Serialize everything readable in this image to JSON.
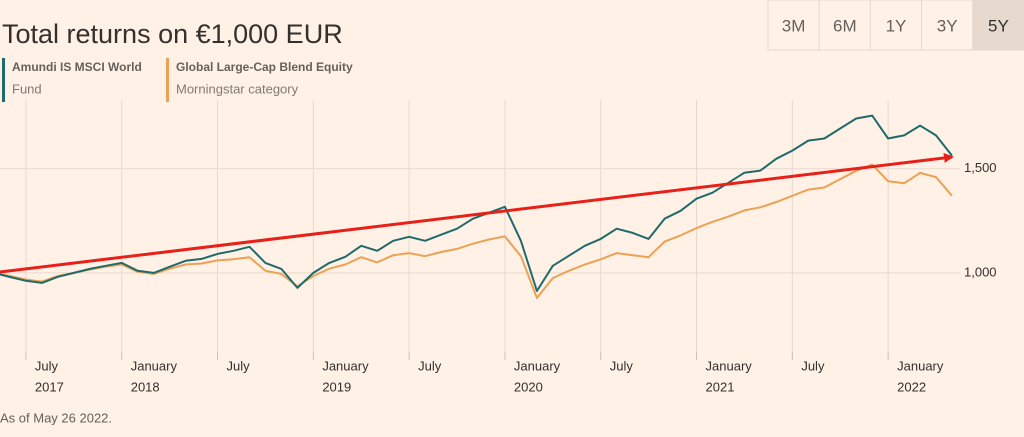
{
  "chart_data": {
    "type": "line",
    "title": "Total returns on €1,000 EUR",
    "range_buttons": [
      "3M",
      "6M",
      "1Y",
      "3Y",
      "5Y"
    ],
    "selected_range": "5Y",
    "footnote": "As of May 26 2022.",
    "x": [
      "2017-05",
      "2017-06",
      "2017-07",
      "2017-08",
      "2017-09",
      "2017-10",
      "2017-11",
      "2017-12",
      "2018-01",
      "2018-02",
      "2018-03",
      "2018-04",
      "2018-05",
      "2018-06",
      "2018-07",
      "2018-08",
      "2018-09",
      "2018-10",
      "2018-11",
      "2018-12",
      "2019-01",
      "2019-02",
      "2019-03",
      "2019-04",
      "2019-05",
      "2019-06",
      "2019-07",
      "2019-08",
      "2019-09",
      "2019-10",
      "2019-11",
      "2019-12",
      "2020-01",
      "2020-02",
      "2020-03",
      "2020-04",
      "2020-05",
      "2020-06",
      "2020-07",
      "2020-08",
      "2020-09",
      "2020-10",
      "2020-11",
      "2020-12",
      "2021-01",
      "2021-02",
      "2021-03",
      "2021-04",
      "2021-05",
      "2021-06",
      "2021-07",
      "2021-08",
      "2021-09",
      "2021-10",
      "2021-11",
      "2021-12",
      "2022-01",
      "2022-02",
      "2022-03",
      "2022-04",
      "2022-05"
    ],
    "xlim": [
      "2017-05",
      "2022-05"
    ],
    "xticks": [
      {
        "value": "2017-07",
        "label": "July",
        "year": "2017"
      },
      {
        "value": "2018-01",
        "label": "January",
        "year": "2018"
      },
      {
        "value": "2018-07",
        "label": "July"
      },
      {
        "value": "2019-01",
        "label": "January",
        "year": "2019"
      },
      {
        "value": "2019-07",
        "label": "July"
      },
      {
        "value": "2020-01",
        "label": "January",
        "year": "2020"
      },
      {
        "value": "2020-07",
        "label": "July"
      },
      {
        "value": "2021-01",
        "label": "January",
        "year": "2021"
      },
      {
        "value": "2021-07",
        "label": "July"
      },
      {
        "value": "2022-01",
        "label": "January",
        "year": "2022"
      }
    ],
    "ylim": [
      620,
      1830
    ],
    "yticks": [
      {
        "value": 1000,
        "label": "1,000"
      },
      {
        "value": 1500,
        "label": "1,500"
      }
    ],
    "grid": true,
    "series": [
      {
        "name": "Amundi IS MSCI World",
        "subtitle": "Fund",
        "color": "#1f6a6b",
        "values": [
          1000,
          980,
          962,
          952,
          981,
          1000,
          1019,
          1034,
          1048,
          1010,
          1000,
          1029,
          1058,
          1067,
          1091,
          1106,
          1125,
          1048,
          1019,
          928,
          1000,
          1048,
          1077,
          1130,
          1106,
          1154,
          1173,
          1154,
          1183,
          1212,
          1260,
          1289,
          1317,
          1154,
          913,
          1034,
          1082,
          1130,
          1163,
          1212,
          1192,
          1163,
          1260,
          1298,
          1356,
          1385,
          1433,
          1481,
          1491,
          1548,
          1587,
          1635,
          1645,
          1693,
          1741,
          1755,
          1645,
          1660,
          1707,
          1660,
          1563
        ]
      },
      {
        "name": "Global Large-Cap Blend Equity",
        "subtitle": "Morningstar category",
        "color": "#eca154",
        "values": [
          1000,
          985,
          968,
          958,
          985,
          1000,
          1015,
          1030,
          1040,
          1005,
          995,
          1020,
          1040,
          1045,
          1060,
          1065,
          1075,
          1010,
          995,
          935,
          985,
          1020,
          1040,
          1075,
          1050,
          1085,
          1095,
          1080,
          1100,
          1115,
          1140,
          1160,
          1175,
          1080,
          880,
          975,
          1010,
          1040,
          1065,
          1095,
          1085,
          1075,
          1150,
          1180,
          1215,
          1245,
          1270,
          1300,
          1315,
          1340,
          1370,
          1400,
          1410,
          1450,
          1490,
          1520,
          1440,
          1430,
          1480,
          1460,
          1370
        ]
      }
    ]
  }
}
